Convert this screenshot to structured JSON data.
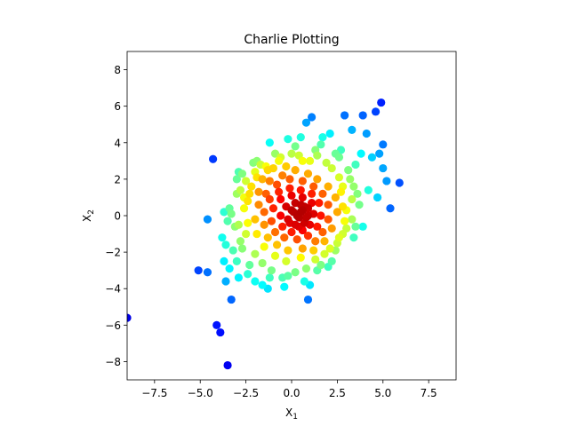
{
  "chart_data": {
    "type": "scatter",
    "title": "Charlie Plotting",
    "xlabel": "X",
    "xlabel_sub": "1",
    "ylabel": "X",
    "ylabel_sub": "2",
    "xlim": [
      -9,
      9
    ],
    "ylim": [
      -9,
      9
    ],
    "xticks": [
      -7.5,
      -5.0,
      -2.5,
      0.0,
      2.5,
      5.0,
      7.5
    ],
    "xtick_labels": [
      "−7.5",
      "−5.0",
      "−2.5",
      "0.0",
      "2.5",
      "5.0",
      "7.5"
    ],
    "yticks": [
      -8,
      -6,
      -4,
      -2,
      0,
      2,
      4,
      6,
      8
    ],
    "ytick_labels": [
      "−8",
      "−6",
      "−4",
      "−2",
      "0",
      "2",
      "4",
      "6",
      "8"
    ],
    "grid": false,
    "legend": false,
    "colormap": "jet",
    "color_encoding": "point density (dark blue = sparse, dark red = dense)",
    "points": [
      [
        -9.0,
        -5.6
      ],
      [
        -3.5,
        -8.2
      ],
      [
        -3.9,
        -6.4
      ],
      [
        -4.1,
        -6.0
      ],
      [
        -3.3,
        -4.6
      ],
      [
        -5.1,
        -3.0
      ],
      [
        -4.6,
        -3.1
      ],
      [
        -4.3,
        3.1
      ],
      [
        -4.6,
        -0.2
      ],
      [
        -3.7,
        0.2
      ],
      [
        -3.4,
        0.4
      ],
      [
        -3.0,
        2.0
      ],
      [
        -2.7,
        2.3
      ],
      [
        -2.1,
        2.9
      ],
      [
        -1.7,
        2.8
      ],
      [
        -1.2,
        4.0
      ],
      [
        -0.2,
        4.2
      ],
      [
        0.8,
        5.1
      ],
      [
        1.1,
        5.4
      ],
      [
        2.1,
        4.5
      ],
      [
        2.9,
        5.5
      ],
      [
        3.9,
        5.5
      ],
      [
        4.6,
        5.7
      ],
      [
        4.9,
        6.2
      ],
      [
        3.3,
        4.7
      ],
      [
        4.1,
        4.5
      ],
      [
        5.0,
        3.9
      ],
      [
        3.8,
        3.4
      ],
      [
        4.4,
        3.2
      ],
      [
        4.8,
        3.4
      ],
      [
        5.0,
        2.6
      ],
      [
        5.2,
        1.9
      ],
      [
        5.9,
        1.8
      ],
      [
        4.2,
        1.4
      ],
      [
        4.7,
        1.0
      ],
      [
        5.4,
        0.4
      ],
      [
        3.7,
        0.6
      ],
      [
        3.5,
        -0.6
      ],
      [
        3.4,
        -1.2
      ],
      [
        3.9,
        -0.6
      ],
      [
        2.4,
        -1.9
      ],
      [
        2.2,
        -2.5
      ],
      [
        1.4,
        -3.0
      ],
      [
        1.0,
        -3.8
      ],
      [
        0.9,
        -4.6
      ],
      [
        -1.3,
        -4.0
      ],
      [
        -2.0,
        -3.6
      ],
      [
        -2.9,
        -3.4
      ],
      [
        -3.6,
        -3.6
      ],
      [
        -3.7,
        -2.5
      ],
      [
        -3.8,
        -1.2
      ],
      [
        -2.8,
        1.4
      ],
      [
        -2.0,
        2.4
      ],
      [
        -0.6,
        3.2
      ],
      [
        0.2,
        3.8
      ],
      [
        1.4,
        3.3
      ],
      [
        2.6,
        3.2
      ],
      [
        3.2,
        2.0
      ],
      [
        3.0,
        0.3
      ],
      [
        -3.2,
        -1.9
      ],
      [
        -3.0,
        -2.5
      ],
      [
        -3.1,
        -0.6
      ],
      [
        -2.5,
        -1.0
      ],
      [
        -2.6,
        1.0
      ],
      [
        -2.2,
        1.6
      ],
      [
        -1.6,
        2.0
      ],
      [
        -1.0,
        2.6
      ],
      [
        -0.3,
        2.7
      ],
      [
        0.4,
        3.3
      ],
      [
        1.0,
        3.0
      ],
      [
        1.6,
        3.9
      ],
      [
        2.2,
        2.6
      ],
      [
        2.8,
        1.6
      ],
      [
        3.0,
        -0.7
      ],
      [
        2.5,
        -1.5
      ],
      [
        1.8,
        -2.1
      ],
      [
        1.3,
        -2.4
      ],
      [
        0.2,
        -3.1
      ],
      [
        -0.5,
        -3.4
      ],
      [
        -1.1,
        -3.0
      ],
      [
        -1.6,
        -2.6
      ],
      [
        -2.0,
        -2.1
      ],
      [
        -2.4,
        -0.4
      ],
      [
        -2.4,
        0.8
      ],
      [
        -1.8,
        1.3
      ],
      [
        -1.2,
        1.9
      ],
      [
        -0.5,
        2.2
      ],
      [
        0.2,
        2.5
      ],
      [
        0.9,
        2.3
      ],
      [
        1.4,
        2.0
      ],
      [
        2.0,
        1.6
      ],
      [
        2.4,
        1.0
      ],
      [
        2.5,
        0.2
      ],
      [
        2.2,
        -0.7
      ],
      [
        1.8,
        -1.4
      ],
      [
        1.2,
        -1.9
      ],
      [
        0.5,
        -2.3
      ],
      [
        -0.3,
        -2.5
      ],
      [
        -0.9,
        -2.2
      ],
      [
        -1.5,
        -1.7
      ],
      [
        -1.9,
        -1.0
      ],
      [
        -2.0,
        -0.2
      ],
      [
        -1.8,
        0.6
      ],
      [
        -1.4,
        1.2
      ],
      [
        -0.8,
        1.7
      ],
      [
        -0.1,
        2.0
      ],
      [
        0.6,
        1.9
      ],
      [
        1.2,
        1.6
      ],
      [
        1.7,
        1.2
      ],
      [
        2.0,
        0.6
      ],
      [
        2.0,
        -0.2
      ],
      [
        1.7,
        -0.9
      ],
      [
        1.3,
        -1.4
      ],
      [
        0.6,
        -1.8
      ],
      [
        -0.2,
        -1.9
      ],
      [
        -0.8,
        -1.6
      ],
      [
        -1.3,
        -1.2
      ],
      [
        -1.5,
        -0.5
      ],
      [
        -1.5,
        0.2
      ],
      [
        -1.2,
        0.9
      ],
      [
        -0.7,
        1.3
      ],
      [
        -0.1,
        1.5
      ],
      [
        0.5,
        1.4
      ],
      [
        1.1,
        1.2
      ],
      [
        1.5,
        0.7
      ],
      [
        1.6,
        0.0
      ],
      [
        1.4,
        -0.6
      ],
      [
        0.9,
        -1.1
      ],
      [
        0.3,
        -1.3
      ],
      [
        -0.4,
        -1.2
      ],
      [
        -0.9,
        -0.9
      ],
      [
        -1.1,
        -0.3
      ],
      [
        -1.0,
        0.4
      ],
      [
        -0.6,
        0.9
      ],
      [
        0.0,
        1.1
      ],
      [
        0.6,
        1.0
      ],
      [
        1.1,
        0.7
      ],
      [
        1.2,
        0.1
      ],
      [
        1.0,
        -0.5
      ],
      [
        0.6,
        -0.8
      ],
      [
        0.0,
        -0.9
      ],
      [
        -0.5,
        -0.6
      ],
      [
        -0.6,
        0.0
      ],
      [
        -0.3,
        0.5
      ],
      [
        0.2,
        0.7
      ],
      [
        0.7,
        0.5
      ],
      [
        0.9,
        0.0
      ],
      [
        0.7,
        -0.4
      ],
      [
        0.2,
        -0.5
      ],
      [
        -0.2,
        -0.2
      ],
      [
        0.1,
        0.2
      ],
      [
        0.5,
        0.2
      ],
      [
        0.4,
        -0.1
      ],
      [
        0.6,
        0.3
      ],
      [
        0.3,
        0.0
      ],
      [
        0.8,
        -0.1
      ],
      [
        0.5,
        0.6
      ],
      [
        0.0,
        0.3
      ],
      [
        -0.1,
        -0.4
      ],
      [
        0.9,
        0.4
      ],
      [
        0.4,
        -0.6
      ],
      [
        -2.8,
        -1.4
      ],
      [
        -3.3,
        0.1
      ],
      [
        -2.9,
        2.4
      ],
      [
        -1.9,
        3.0
      ],
      [
        -0.9,
        3.4
      ],
      [
        0.5,
        4.3
      ],
      [
        1.7,
        4.3
      ],
      [
        2.7,
        3.6
      ],
      [
        3.5,
        2.8
      ],
      [
        3.6,
        1.2
      ],
      [
        3.3,
        -0.2
      ],
      [
        2.8,
        -1.0
      ],
      [
        2.0,
        -2.8
      ],
      [
        0.7,
        -3.6
      ],
      [
        -0.4,
        -3.9
      ],
      [
        -1.6,
        -3.8
      ],
      [
        -2.4,
        -3.2
      ],
      [
        -3.4,
        -2.9
      ],
      [
        -3.6,
        -1.6
      ],
      [
        -3.5,
        -0.3
      ],
      [
        -3.0,
        1.2
      ],
      [
        -2.5,
        1.9
      ],
      [
        -1.3,
        2.5
      ],
      [
        0.0,
        3.4
      ],
      [
        1.3,
        3.6
      ],
      [
        2.4,
        3.4
      ],
      [
        3.1,
        2.5
      ],
      [
        3.4,
        1.6
      ],
      [
        3.3,
        0.9
      ],
      [
        2.9,
        -0.3
      ],
      [
        2.6,
        -1.2
      ],
      [
        2.1,
        -1.8
      ],
      [
        1.6,
        -2.7
      ],
      [
        0.8,
        -2.9
      ],
      [
        -0.2,
        -3.3
      ],
      [
        -1.2,
        -3.4
      ],
      [
        -2.3,
        -2.7
      ],
      [
        -2.7,
        -1.8
      ],
      [
        -2.9,
        -0.5
      ],
      [
        -2.6,
        0.4
      ],
      [
        -2.3,
        1.2
      ],
      [
        -1.9,
        2.1
      ],
      [
        -1.4,
        2.7
      ],
      [
        -0.7,
        3.0
      ],
      [
        0.6,
        3.0
      ],
      [
        1.9,
        2.9
      ],
      [
        2.6,
        2.1
      ],
      [
        2.7,
        1.3
      ],
      [
        2.8,
        0.5
      ]
    ]
  }
}
